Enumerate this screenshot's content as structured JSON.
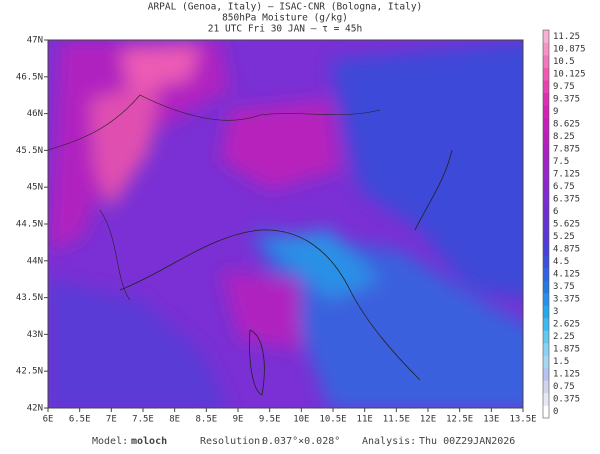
{
  "header": {
    "lines": [
      "ARPAL (Genoa, Italy)  –  ISAC-CNR (Bologna, Italy)",
      "850hPa Moisture (g/kg)",
      "21 UTC Fri 30 JAN  –  τ = 45h"
    ]
  },
  "axes": {
    "x_labels": [
      "6E",
      "6.5E",
      "7E",
      "7.5E",
      "8E",
      "8.5E",
      "9E",
      "9.5E",
      "10E",
      "10.5E",
      "11E",
      "11.5E",
      "12E",
      "12.5E",
      "13E",
      "13.5E"
    ],
    "y_labels": [
      "47N",
      "46.5N",
      "46N",
      "45.5N",
      "45N",
      "44.5N",
      "44N",
      "43.5N",
      "43N",
      "42.5N",
      "42N"
    ]
  },
  "colorbar": {
    "labels": [
      "0",
      "0.375",
      "0.75",
      "1.125",
      "1.5",
      "1.875",
      "2.25",
      "2.625",
      "3",
      "3.375",
      "3.75",
      "4.125",
      "4.5",
      "4.875",
      "5.25",
      "5.625",
      "6",
      "6.375",
      "6.75",
      "7.125",
      "7.5",
      "7.875",
      "8.25",
      "8.625",
      "9",
      "9.375",
      "9.75",
      "10.125",
      "10.5",
      "10.875",
      "11.25"
    ],
    "colors": [
      "#ffffff",
      "#e8e8f0",
      "#d0d4ec",
      "#b8c4f0",
      "#a8d8f0",
      "#8cd0f4",
      "#64c8f0",
      "#40b8f0",
      "#28a8ec",
      "#2890e8",
      "#2878e0",
      "#3064e0",
      "#3c50dc",
      "#4a40d8",
      "#5838d4",
      "#6434d0",
      "#7030d0",
      "#7c2cd0",
      "#8828cc",
      "#9428c8",
      "#a024c4",
      "#ac20c0",
      "#b820bc",
      "#c420b8",
      "#d024b4",
      "#dc30b0",
      "#e444b0",
      "#ec5cb4",
      "#f078bc",
      "#f494c8",
      "#f8b0d4"
    ]
  },
  "footer": {
    "model_label": "Model:",
    "model": "moloch",
    "resolution_label": "Resolution:",
    "resolution": "0.037°×0.028°",
    "analysis_label": "Analysis:",
    "analysis": "Thu 00Z29JAN2026"
  }
}
